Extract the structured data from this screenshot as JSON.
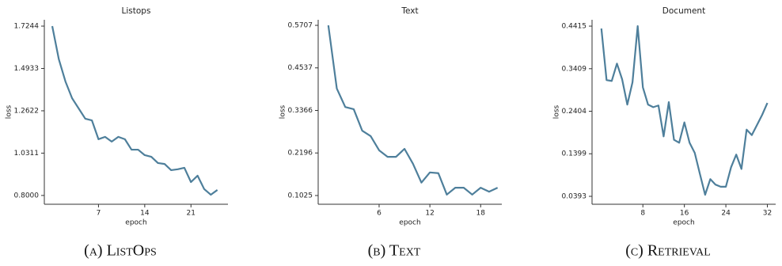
{
  "chart_data": [
    {
      "type": "line",
      "title": "Listops",
      "x_label": "epoch",
      "y_label": "loss",
      "caption": "(a) ListOps",
      "x": [
        0,
        1,
        2,
        3,
        4,
        5,
        6,
        7,
        8,
        9,
        10,
        11,
        12,
        13,
        14,
        15,
        16,
        17,
        18,
        19,
        20,
        21,
        22,
        23,
        24,
        25
      ],
      "series": [
        {
          "name": "loss",
          "color": "#4e7f9b",
          "values": [
            1.7244,
            1.543,
            1.422,
            1.331,
            1.275,
            1.219,
            1.21,
            1.107,
            1.12,
            1.094,
            1.12,
            1.107,
            1.05,
            1.05,
            1.02,
            1.011,
            0.977,
            0.972,
            0.938,
            0.943,
            0.951,
            0.873,
            0.908,
            0.835,
            0.804,
            0.83
          ]
        }
      ],
      "xlim": [
        -1.2,
        26.6
      ],
      "xticks": [
        7,
        14,
        21
      ],
      "ylim": [
        0.752,
        1.759
      ],
      "yticks": [
        {
          "value": 0.8,
          "label": "0.8000"
        },
        1.0311,
        1.2622,
        1.4933,
        1.7244
      ]
    },
    {
      "type": "line",
      "title": "Text",
      "x_label": "epoch",
      "y_label": "loss",
      "caption": "(b) Text",
      "x": [
        0,
        1,
        2,
        3,
        4,
        5,
        6,
        7,
        8,
        9,
        10,
        11,
        12,
        13,
        14,
        15,
        16,
        17,
        18,
        19,
        20
      ],
      "series": [
        {
          "name": "loss",
          "color": "#4e7f9b",
          "values": [
            0.5707,
            0.397,
            0.346,
            0.34,
            0.281,
            0.266,
            0.227,
            0.209,
            0.209,
            0.231,
            0.19,
            0.138,
            0.166,
            0.164,
            0.105,
            0.124,
            0.124,
            0.105,
            0.124,
            0.113,
            0.124
          ]
        }
      ],
      "xlim": [
        -1.2,
        20.5
      ],
      "xticks": [
        6,
        12,
        18
      ],
      "ylim": [
        0.0785,
        0.586
      ],
      "yticks": [
        0.1025,
        0.2196,
        0.3366,
        0.4537,
        0.5707
      ]
    },
    {
      "type": "line",
      "title": "Document",
      "x_label": "epoch",
      "y_label": "loss",
      "caption": "(c) Retrieval",
      "x": [
        0,
        1,
        2,
        3,
        4,
        5,
        6,
        7,
        8,
        9,
        10,
        11,
        12,
        13,
        14,
        15,
        16,
        17,
        18,
        19,
        20,
        21,
        22,
        23,
        24,
        25,
        26,
        27,
        28,
        29,
        30,
        31,
        32
      ],
      "series": [
        {
          "name": "loss",
          "color": "#4e7f9b",
          "values": [
            0.436,
            0.314,
            0.312,
            0.353,
            0.316,
            0.256,
            0.309,
            0.4415,
            0.297,
            0.256,
            0.25,
            0.254,
            0.181,
            0.262,
            0.173,
            0.166,
            0.214,
            0.166,
            0.142,
            0.092,
            0.043,
            0.08,
            0.067,
            0.062,
            0.062,
            0.108,
            0.138,
            0.104,
            0.197,
            0.184,
            0.208,
            0.232,
            0.26
          ]
        }
      ],
      "xlim": [
        -1.8,
        33.6
      ],
      "xticks": [
        8,
        16,
        24,
        32
      ],
      "ylim": [
        0.0206,
        0.4565
      ],
      "yticks": [
        0.0393,
        0.1399,
        0.2404,
        0.3409,
        0.4415
      ]
    }
  ]
}
